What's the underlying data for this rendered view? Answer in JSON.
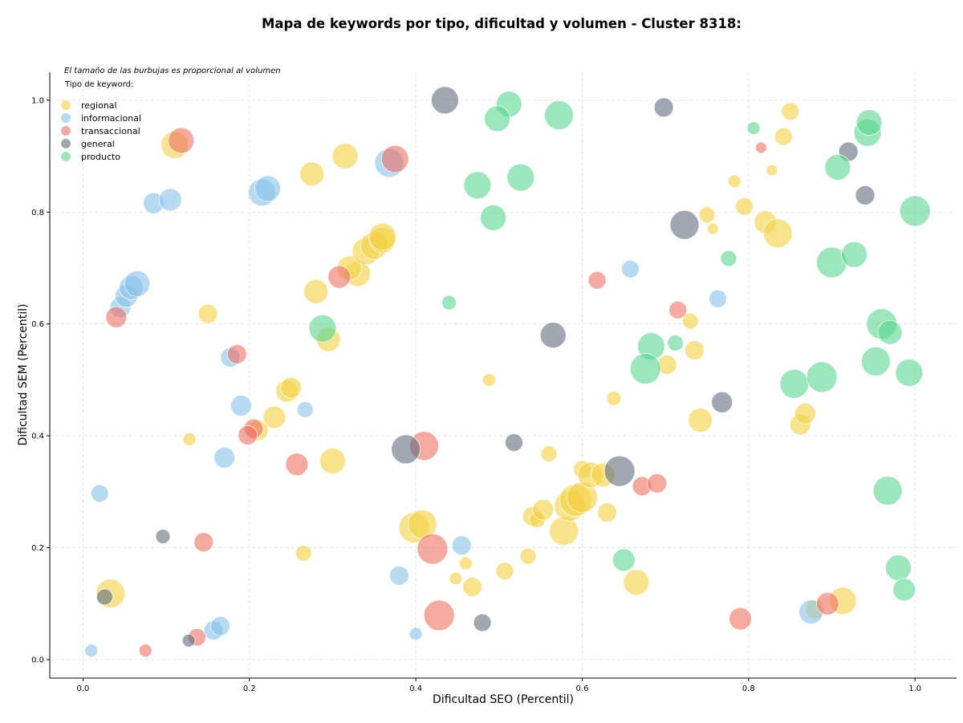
{
  "chart_data": {
    "type": "scatter",
    "title": "Mapa de keywords por tipo, dificultad y volumen - Cluster 8318:",
    "xlabel": "Dificultad SEO (Percentil)",
    "ylabel": "Dificultad SEM (Percentil)",
    "xlim": [
      -0.04,
      1.05
    ],
    "ylim": [
      -0.033,
      1.05
    ],
    "xticks": [
      "0.0",
      "0.2",
      "0.4",
      "0.6",
      "0.8",
      "1.0"
    ],
    "yticks": [
      "0.0",
      "0.2",
      "0.4",
      "0.6",
      "0.8",
      "1.0"
    ],
    "grid": true,
    "annotation": "El tamaño de las burbujas es proporcional al volumen",
    "legend": {
      "title": "Tipo de keyword:",
      "placement": "top-left"
    },
    "series": [
      {
        "name": "regional",
        "color": "#f4d03f",
        "points": [
          [
            0.11,
            0.92,
            17
          ],
          [
            0.315,
            0.9,
            16
          ],
          [
            0.275,
            0.868,
            15
          ],
          [
            0.33,
            0.69,
            16
          ],
          [
            0.32,
            0.7,
            15
          ],
          [
            0.34,
            0.73,
            17
          ],
          [
            0.35,
            0.74,
            17
          ],
          [
            0.36,
            0.75,
            16
          ],
          [
            0.36,
            0.756,
            17
          ],
          [
            0.28,
            0.658,
            15
          ],
          [
            0.15,
            0.618,
            12
          ],
          [
            0.295,
            0.572,
            15
          ],
          [
            0.245,
            0.48,
            14
          ],
          [
            0.25,
            0.486,
            13
          ],
          [
            0.23,
            0.433,
            14
          ],
          [
            0.21,
            0.41,
            13
          ],
          [
            0.128,
            0.394,
            8
          ],
          [
            0.3,
            0.355,
            16
          ],
          [
            0.398,
            0.236,
            19
          ],
          [
            0.408,
            0.242,
            18
          ],
          [
            0.265,
            0.19,
            10
          ],
          [
            0.033,
            0.118,
            18
          ],
          [
            0.46,
            0.172,
            8
          ],
          [
            0.448,
            0.145,
            8
          ],
          [
            0.468,
            0.13,
            12
          ],
          [
            0.507,
            0.158,
            11
          ],
          [
            0.488,
            0.5,
            8
          ],
          [
            0.56,
            0.368,
            10
          ],
          [
            0.54,
            0.256,
            12
          ],
          [
            0.546,
            0.25,
            10
          ],
          [
            0.553,
            0.268,
            13
          ],
          [
            0.535,
            0.185,
            10
          ],
          [
            0.578,
            0.23,
            18
          ],
          [
            0.585,
            0.275,
            19
          ],
          [
            0.592,
            0.285,
            20
          ],
          [
            0.6,
            0.29,
            19
          ],
          [
            0.6,
            0.34,
            11
          ],
          [
            0.61,
            0.33,
            16
          ],
          [
            0.625,
            0.33,
            15
          ],
          [
            0.63,
            0.263,
            12
          ],
          [
            0.638,
            0.467,
            9
          ],
          [
            0.665,
            0.138,
            16
          ],
          [
            0.702,
            0.527,
            12
          ],
          [
            0.73,
            0.605,
            10
          ],
          [
            0.735,
            0.553,
            12
          ],
          [
            0.742,
            0.428,
            15
          ],
          [
            0.75,
            0.795,
            10
          ],
          [
            0.757,
            0.77,
            7
          ],
          [
            0.783,
            0.855,
            8
          ],
          [
            0.795,
            0.81,
            11
          ],
          [
            0.82,
            0.782,
            14
          ],
          [
            0.835,
            0.762,
            18
          ],
          [
            0.828,
            0.875,
            7
          ],
          [
            0.842,
            0.935,
            11
          ],
          [
            0.85,
            0.98,
            11
          ],
          [
            0.862,
            0.42,
            13
          ],
          [
            0.868,
            0.44,
            13
          ],
          [
            0.913,
            0.105,
            17
          ],
          [
            0.88,
            0.09,
            12
          ]
        ]
      },
      {
        "name": "informacional",
        "color": "#85c1e9",
        "points": [
          [
            0.085,
            0.816,
            13
          ],
          [
            0.105,
            0.822,
            14
          ],
          [
            0.215,
            0.835,
            17
          ],
          [
            0.222,
            0.842,
            16
          ],
          [
            0.368,
            0.888,
            18
          ],
          [
            0.045,
            0.63,
            13
          ],
          [
            0.052,
            0.65,
            14
          ],
          [
            0.058,
            0.665,
            15
          ],
          [
            0.065,
            0.672,
            16
          ],
          [
            0.177,
            0.54,
            12
          ],
          [
            0.19,
            0.454,
            13
          ],
          [
            0.267,
            0.447,
            10
          ],
          [
            0.17,
            0.361,
            13
          ],
          [
            0.02,
            0.297,
            11
          ],
          [
            0.38,
            0.15,
            12
          ],
          [
            0.455,
            0.204,
            12
          ],
          [
            0.4,
            0.046,
            8
          ],
          [
            0.01,
            0.016,
            8
          ],
          [
            0.157,
            0.052,
            12
          ],
          [
            0.165,
            0.06,
            12
          ],
          [
            0.658,
            0.698,
            11
          ],
          [
            0.763,
            0.645,
            11
          ],
          [
            0.875,
            0.085,
            15
          ]
        ]
      },
      {
        "name": "transaccional",
        "color": "#ec7063",
        "points": [
          [
            0.118,
            0.928,
            16
          ],
          [
            0.375,
            0.895,
            17
          ],
          [
            0.308,
            0.684,
            14
          ],
          [
            0.04,
            0.612,
            13
          ],
          [
            0.185,
            0.546,
            12
          ],
          [
            0.205,
            0.413,
            12
          ],
          [
            0.198,
            0.401,
            12
          ],
          [
            0.257,
            0.349,
            14
          ],
          [
            0.41,
            0.382,
            18
          ],
          [
            0.42,
            0.198,
            19
          ],
          [
            0.145,
            0.21,
            12
          ],
          [
            0.075,
            0.016,
            8
          ],
          [
            0.137,
            0.04,
            11
          ],
          [
            0.428,
            0.079,
            19
          ],
          [
            0.618,
            0.678,
            11
          ],
          [
            0.672,
            0.31,
            12
          ],
          [
            0.69,
            0.315,
            12
          ],
          [
            0.715,
            0.625,
            11
          ],
          [
            0.79,
            0.073,
            14
          ],
          [
            0.815,
            0.915,
            7
          ],
          [
            0.895,
            0.1,
            14
          ]
        ]
      },
      {
        "name": "general",
        "color": "#5d6d7e",
        "points": [
          [
            0.435,
            1.0,
            17
          ],
          [
            0.698,
            0.987,
            12
          ],
          [
            0.92,
            0.908,
            12
          ],
          [
            0.94,
            0.83,
            12
          ],
          [
            0.723,
            0.777,
            18
          ],
          [
            0.565,
            0.58,
            16
          ],
          [
            0.768,
            0.46,
            13
          ],
          [
            0.518,
            0.388,
            11
          ],
          [
            0.388,
            0.376,
            18
          ],
          [
            0.645,
            0.337,
            19
          ],
          [
            0.096,
            0.22,
            9
          ],
          [
            0.48,
            0.066,
            11
          ],
          [
            0.127,
            0.034,
            8
          ],
          [
            0.026,
            0.112,
            10
          ]
        ]
      },
      {
        "name": "producto",
        "color": "#58d68d",
        "points": [
          [
            0.512,
            0.993,
            16
          ],
          [
            0.498,
            0.967,
            16
          ],
          [
            0.572,
            0.973,
            18
          ],
          [
            0.474,
            0.848,
            17
          ],
          [
            0.526,
            0.862,
            17
          ],
          [
            0.493,
            0.79,
            16
          ],
          [
            0.806,
            0.95,
            8
          ],
          [
            0.44,
            0.638,
            9
          ],
          [
            0.288,
            0.592,
            17
          ],
          [
            0.683,
            0.56,
            17
          ],
          [
            0.676,
            0.52,
            19
          ],
          [
            0.712,
            0.566,
            10
          ],
          [
            0.776,
            0.717,
            10
          ],
          [
            0.9,
            0.71,
            19
          ],
          [
            0.927,
            0.724,
            16
          ],
          [
            0.907,
            0.88,
            16
          ],
          [
            0.943,
            0.942,
            17
          ],
          [
            0.945,
            0.96,
            16
          ],
          [
            1.0,
            0.802,
            19
          ],
          [
            0.96,
            0.6,
            19
          ],
          [
            0.97,
            0.585,
            15
          ],
          [
            0.953,
            0.533,
            18
          ],
          [
            0.993,
            0.513,
            17
          ],
          [
            0.855,
            0.493,
            18
          ],
          [
            0.888,
            0.505,
            19
          ],
          [
            0.967,
            0.302,
            18
          ],
          [
            0.65,
            0.178,
            14
          ],
          [
            0.98,
            0.164,
            16
          ],
          [
            0.987,
            0.125,
            14
          ]
        ]
      }
    ]
  }
}
